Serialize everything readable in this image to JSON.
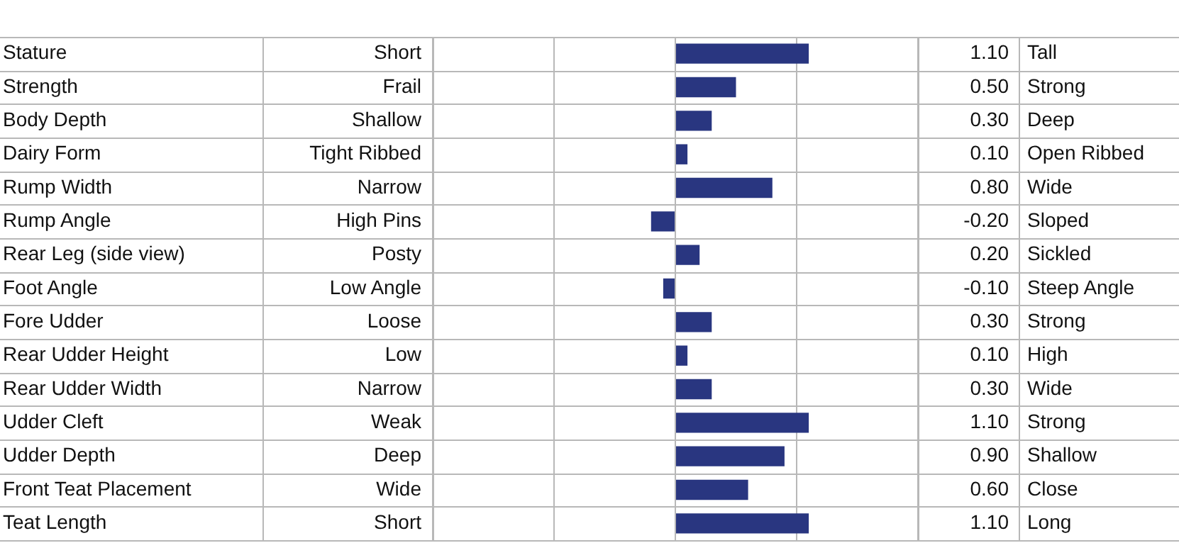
{
  "chart_data": {
    "type": "bar",
    "orientation": "horizontal",
    "categories": [
      "Stature",
      "Strength",
      "Body Depth",
      "Dairy Form",
      "Rump Width",
      "Rump Angle",
      "Rear Leg (side view)",
      "Foot Angle",
      "Fore Udder",
      "Rear Udder Height",
      "Rear Udder Width",
      "Udder Cleft",
      "Udder Depth",
      "Front Teat Placement",
      "Teat Length"
    ],
    "values": [
      1.1,
      0.5,
      0.3,
      0.1,
      0.8,
      -0.2,
      0.2,
      -0.1,
      0.3,
      0.1,
      0.3,
      1.1,
      0.9,
      0.6,
      1.1
    ],
    "value_labels": [
      "1.10",
      "0.50",
      "0.30",
      "0.10",
      "0.80",
      "-0.20",
      "0.20",
      "-0.10",
      "0.30",
      "0.10",
      "0.30",
      "1.10",
      "0.90",
      "0.60",
      "1.10"
    ],
    "color": "#293680",
    "xlim": [
      -2,
      2
    ],
    "xticks": [
      {
        "value": -2,
        "label": null
      },
      {
        "value": -1,
        "label": null
      },
      {
        "value": 0,
        "label": null
      },
      {
        "value": 1,
        "label": null
      },
      {
        "value": 2,
        "label": null
      }
    ],
    "tick_labels": false,
    "grid": "x",
    "legend": false,
    "annotations": [
      "Short",
      "Frail",
      "Shallow",
      "Tight Ribbed",
      "Narrow",
      "High Pins",
      "Posty",
      "Low Angle",
      "Loose",
      "Low",
      "Narrow",
      "Weak",
      "Deep",
      "Wide",
      "Short",
      "Tall",
      "Strong",
      "Deep",
      "Open Ribbed",
      "Wide",
      "Sloped",
      "Sickled",
      "Steep Angle",
      "Strong",
      "High",
      "Wide",
      "Strong",
      "Shallow",
      "Close",
      "Long"
    ]
  }
}
